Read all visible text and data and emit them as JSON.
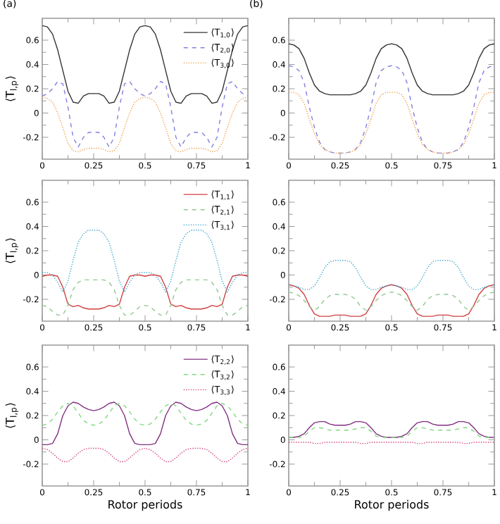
{
  "chart_data": [
    {
      "type": "line",
      "title": "(a)",
      "ylabel": "⟨T$_{l,p}$⟩",
      "legend": "top right",
      "xlim": [
        0,
        1
      ],
      "ylim": [
        -0.38,
        0.78
      ],
      "xticks": [
        0,
        0.25,
        0.5,
        0.75,
        1
      ],
      "yticks": [
        -0.2,
        0,
        0.2,
        0.4,
        0.6
      ],
      "x": [
        0,
        0.025,
        0.05,
        0.075,
        0.1,
        0.125,
        0.15,
        0.175,
        0.2,
        0.225,
        0.25,
        0.275,
        0.3,
        0.325,
        0.35,
        0.375,
        0.4,
        0.425,
        0.45,
        0.475,
        0.5,
        0.525,
        0.55,
        0.575,
        0.6,
        0.625,
        0.65,
        0.675,
        0.7,
        0.725,
        0.75,
        0.775,
        0.8,
        0.825,
        0.85,
        0.875,
        0.9,
        0.925,
        0.95,
        0.975,
        1
      ],
      "series": [
        {
          "name": "⟨T$_{1,0}$⟩",
          "color": "#333333",
          "line_style": "solid",
          "values": [
            0.72,
            0.71,
            0.65,
            0.52,
            0.35,
            0.18,
            0.09,
            0.08,
            0.14,
            0.16,
            0.16,
            0.16,
            0.14,
            0.08,
            0.09,
            0.18,
            0.35,
            0.52,
            0.65,
            0.71,
            0.72,
            0.71,
            0.65,
            0.52,
            0.35,
            0.18,
            0.09,
            0.08,
            0.14,
            0.16,
            0.16,
            0.16,
            0.14,
            0.08,
            0.09,
            0.18,
            0.35,
            0.52,
            0.65,
            0.71,
            0.72
          ]
        },
        {
          "name": "⟨T$_{2,0}$⟩",
          "color": "#8080e0",
          "line_style": "dashed",
          "values": [
            0.14,
            0.16,
            0.2,
            0.26,
            0.24,
            0.05,
            -0.2,
            -0.28,
            -0.2,
            -0.16,
            -0.16,
            -0.16,
            -0.2,
            -0.28,
            -0.2,
            0.05,
            0.24,
            0.26,
            0.2,
            0.16,
            0.14,
            0.16,
            0.2,
            0.26,
            0.24,
            0.05,
            -0.2,
            -0.28,
            -0.2,
            -0.16,
            -0.16,
            -0.16,
            -0.2,
            -0.28,
            -0.2,
            0.05,
            0.24,
            0.26,
            0.2,
            0.16,
            0.14
          ]
        },
        {
          "name": "⟨T$_{3,0}$⟩",
          "color": "#f0a050",
          "line_style": "dotted",
          "values": [
            0.13,
            0.12,
            0.09,
            0,
            -0.12,
            -0.25,
            -0.31,
            -0.32,
            -0.3,
            -0.29,
            -0.29,
            -0.29,
            -0.3,
            -0.32,
            -0.31,
            -0.25,
            -0.12,
            0,
            0.09,
            0.12,
            0.13,
            0.12,
            0.09,
            0,
            -0.12,
            -0.25,
            -0.31,
            -0.32,
            -0.3,
            -0.29,
            -0.29,
            -0.29,
            -0.3,
            -0.32,
            -0.31,
            -0.25,
            -0.12,
            0,
            0.09,
            0.12,
            0.13
          ]
        }
      ]
    },
    {
      "type": "line",
      "title": "(b)",
      "xlim": [
        0,
        1
      ],
      "ylim": [
        -0.38,
        0.78
      ],
      "xticks": [
        0,
        0.25,
        0.5,
        0.75,
        1
      ],
      "yticks": [
        -0.2,
        0,
        0.2,
        0.4,
        0.6
      ],
      "x": [
        0,
        0.025,
        0.05,
        0.075,
        0.1,
        0.125,
        0.15,
        0.175,
        0.2,
        0.225,
        0.25,
        0.275,
        0.3,
        0.325,
        0.35,
        0.375,
        0.4,
        0.425,
        0.45,
        0.475,
        0.5,
        0.525,
        0.55,
        0.575,
        0.6,
        0.625,
        0.65,
        0.675,
        0.7,
        0.725,
        0.75,
        0.775,
        0.8,
        0.825,
        0.85,
        0.875,
        0.9,
        0.925,
        0.95,
        0.975,
        1
      ],
      "series": [
        {
          "color": "#333333",
          "line_style": "solid",
          "values": [
            0.57,
            0.56,
            0.53,
            0.45,
            0.33,
            0.23,
            0.18,
            0.16,
            0.15,
            0.15,
            0.15,
            0.15,
            0.15,
            0.16,
            0.18,
            0.23,
            0.33,
            0.45,
            0.53,
            0.56,
            0.57,
            0.56,
            0.53,
            0.45,
            0.33,
            0.23,
            0.18,
            0.16,
            0.15,
            0.15,
            0.15,
            0.15,
            0.15,
            0.16,
            0.18,
            0.23,
            0.33,
            0.45,
            0.53,
            0.56,
            0.57
          ]
        },
        {
          "color": "#8080e0",
          "line_style": "dashed",
          "values": [
            0.39,
            0.38,
            0.35,
            0.25,
            0.05,
            -0.12,
            -0.24,
            -0.3,
            -0.32,
            -0.33,
            -0.33,
            -0.33,
            -0.32,
            -0.3,
            -0.24,
            -0.12,
            0.05,
            0.25,
            0.35,
            0.38,
            0.39,
            0.38,
            0.35,
            0.25,
            0.05,
            -0.12,
            -0.24,
            -0.3,
            -0.32,
            -0.33,
            -0.33,
            -0.33,
            -0.32,
            -0.3,
            -0.24,
            -0.12,
            0.05,
            0.25,
            0.35,
            0.38,
            0.39
          ]
        },
        {
          "color": "#f0a050",
          "line_style": "dotted",
          "values": [
            0.17,
            0.17,
            0.15,
            0.08,
            -0.05,
            -0.17,
            -0.26,
            -0.3,
            -0.32,
            -0.33,
            -0.33,
            -0.33,
            -0.32,
            -0.3,
            -0.26,
            -0.17,
            -0.05,
            0.08,
            0.15,
            0.17,
            0.17,
            0.17,
            0.15,
            0.08,
            -0.05,
            -0.17,
            -0.26,
            -0.3,
            -0.32,
            -0.33,
            -0.33,
            -0.33,
            -0.32,
            -0.3,
            -0.26,
            -0.17,
            -0.05,
            0.08,
            0.15,
            0.17,
            0.17
          ]
        }
      ]
    },
    {
      "type": "line",
      "ylabel": "⟨T$_{l,p}$⟩",
      "legend": "top right",
      "xlim": [
        0,
        1
      ],
      "ylim": [
        -0.38,
        0.78
      ],
      "xticks": [
        0,
        0.25,
        0.5,
        0.75,
        1
      ],
      "yticks": [
        -0.2,
        0,
        0.2,
        0.4,
        0.6
      ],
      "x": [
        0,
        0.025,
        0.05,
        0.075,
        0.1,
        0.125,
        0.15,
        0.175,
        0.2,
        0.225,
        0.25,
        0.275,
        0.3,
        0.325,
        0.35,
        0.375,
        0.4,
        0.425,
        0.45,
        0.475,
        0.5,
        0.525,
        0.55,
        0.575,
        0.6,
        0.625,
        0.65,
        0.675,
        0.7,
        0.725,
        0.75,
        0.775,
        0.8,
        0.825,
        0.85,
        0.875,
        0.9,
        0.925,
        0.95,
        0.975,
        1
      ],
      "series": [
        {
          "name": "⟨T$_{1,1}$⟩",
          "color": "#d04040",
          "line_style": "solid",
          "values": [
            -0.01,
            0,
            0,
            -0.01,
            -0.1,
            -0.24,
            -0.26,
            -0.25,
            -0.27,
            -0.28,
            -0.28,
            -0.28,
            -0.27,
            -0.25,
            -0.26,
            -0.24,
            -0.1,
            -0.01,
            0,
            0,
            -0.01,
            0,
            0,
            -0.01,
            -0.1,
            -0.24,
            -0.26,
            -0.25,
            -0.27,
            -0.28,
            -0.28,
            -0.28,
            -0.27,
            -0.25,
            -0.26,
            -0.24,
            -0.1,
            -0.01,
            0,
            0,
            -0.01
          ]
        },
        {
          "name": "⟨T$_{2,1}$⟩",
          "color": "#90c890",
          "line_style": "dashed",
          "values": [
            -0.25,
            -0.26,
            -0.3,
            -0.33,
            -0.33,
            -0.25,
            -0.12,
            -0.06,
            -0.04,
            -0.04,
            -0.04,
            -0.04,
            -0.04,
            -0.06,
            -0.12,
            -0.25,
            -0.33,
            -0.33,
            -0.3,
            -0.26,
            -0.25,
            -0.26,
            -0.3,
            -0.33,
            -0.33,
            -0.25,
            -0.12,
            -0.06,
            -0.04,
            -0.04,
            -0.04,
            -0.04,
            -0.04,
            -0.06,
            -0.12,
            -0.25,
            -0.33,
            -0.33,
            -0.3,
            -0.26,
            -0.25
          ]
        },
        {
          "name": "⟨T$_{3,1}$⟩",
          "color": "#40a8d0",
          "line_style": "dotted",
          "values": [
            0.02,
            0.02,
            0,
            -0.06,
            -0.14,
            -0.05,
            0.12,
            0.27,
            0.34,
            0.37,
            0.37,
            0.37,
            0.34,
            0.27,
            0.12,
            -0.05,
            -0.14,
            -0.06,
            0,
            0.02,
            0.02,
            0.02,
            0,
            -0.06,
            -0.14,
            -0.05,
            0.12,
            0.27,
            0.34,
            0.37,
            0.37,
            0.37,
            0.34,
            0.27,
            0.12,
            -0.05,
            -0.14,
            -0.06,
            0,
            0.02,
            0.02
          ]
        }
      ]
    },
    {
      "type": "line",
      "xlim": [
        0,
        1
      ],
      "ylim": [
        -0.38,
        0.78
      ],
      "xticks": [
        0,
        0.25,
        0.5,
        0.75,
        1
      ],
      "yticks": [
        -0.2,
        0,
        0.2,
        0.4,
        0.6
      ],
      "x": [
        0,
        0.025,
        0.05,
        0.075,
        0.1,
        0.125,
        0.15,
        0.175,
        0.2,
        0.225,
        0.25,
        0.275,
        0.3,
        0.325,
        0.35,
        0.375,
        0.4,
        0.425,
        0.45,
        0.475,
        0.5,
        0.525,
        0.55,
        0.575,
        0.6,
        0.625,
        0.65,
        0.675,
        0.7,
        0.725,
        0.75,
        0.775,
        0.8,
        0.825,
        0.85,
        0.875,
        0.9,
        0.925,
        0.95,
        0.975,
        1
      ],
      "series": [
        {
          "color": "#d04040",
          "line_style": "solid",
          "values": [
            -0.08,
            -0.09,
            -0.11,
            -0.16,
            -0.25,
            -0.32,
            -0.34,
            -0.34,
            -0.34,
            -0.33,
            -0.33,
            -0.33,
            -0.34,
            -0.34,
            -0.34,
            -0.32,
            -0.25,
            -0.16,
            -0.11,
            -0.09,
            -0.08,
            -0.09,
            -0.11,
            -0.16,
            -0.25,
            -0.32,
            -0.34,
            -0.34,
            -0.34,
            -0.33,
            -0.33,
            -0.33,
            -0.34,
            -0.34,
            -0.34,
            -0.32,
            -0.25,
            -0.16,
            -0.11,
            -0.09,
            -0.08
          ]
        },
        {
          "color": "#90c890",
          "line_style": "dashed",
          "values": [
            -0.14,
            -0.15,
            -0.17,
            -0.21,
            -0.26,
            -0.29,
            -0.26,
            -0.2,
            -0.17,
            -0.16,
            -0.16,
            -0.16,
            -0.17,
            -0.2,
            -0.26,
            -0.29,
            -0.26,
            -0.21,
            -0.17,
            -0.15,
            -0.14,
            -0.15,
            -0.17,
            -0.21,
            -0.26,
            -0.29,
            -0.26,
            -0.2,
            -0.17,
            -0.16,
            -0.16,
            -0.16,
            -0.17,
            -0.2,
            -0.26,
            -0.29,
            -0.26,
            -0.21,
            -0.17,
            -0.15,
            -0.14
          ]
        },
        {
          "color": "#40a8d0",
          "line_style": "dotted",
          "values": [
            -0.08,
            -0.09,
            -0.1,
            -0.12,
            -0.12,
            -0.09,
            -0.02,
            0.06,
            0.11,
            0.12,
            0.12,
            0.12,
            0.11,
            0.06,
            -0.02,
            -0.09,
            -0.12,
            -0.12,
            -0.1,
            -0.09,
            -0.08,
            -0.09,
            -0.1,
            -0.12,
            -0.12,
            -0.09,
            -0.02,
            0.06,
            0.11,
            0.12,
            0.12,
            0.12,
            0.11,
            0.06,
            -0.02,
            -0.09,
            -0.12,
            -0.12,
            -0.1,
            -0.09,
            -0.08
          ]
        }
      ]
    },
    {
      "type": "line",
      "xlabel": "Rotor periods",
      "ylabel": "⟨T$_{l,p}$⟩",
      "legend": "top right",
      "xlim": [
        0,
        1
      ],
      "ylim": [
        -0.38,
        0.78
      ],
      "xticks": [
        0,
        0.25,
        0.5,
        0.75,
        1
      ],
      "yticks": [
        -0.2,
        0,
        0.2,
        0.4,
        0.6
      ],
      "x": [
        0,
        0.025,
        0.05,
        0.075,
        0.1,
        0.125,
        0.15,
        0.175,
        0.2,
        0.225,
        0.25,
        0.275,
        0.3,
        0.325,
        0.35,
        0.375,
        0.4,
        0.425,
        0.45,
        0.475,
        0.5,
        0.525,
        0.55,
        0.575,
        0.6,
        0.625,
        0.65,
        0.675,
        0.7,
        0.725,
        0.75,
        0.775,
        0.8,
        0.825,
        0.85,
        0.875,
        0.9,
        0.925,
        0.95,
        0.975,
        1
      ],
      "series": [
        {
          "name": "⟨T$_{2,2}$⟩",
          "color": "#803080",
          "line_style": "solid",
          "values": [
            -0.04,
            -0.04,
            -0.03,
            0.05,
            0.2,
            0.28,
            0.31,
            0.3,
            0.27,
            0.25,
            0.24,
            0.25,
            0.27,
            0.3,
            0.31,
            0.28,
            0.2,
            0.05,
            -0.03,
            -0.04,
            -0.04,
            -0.04,
            -0.03,
            0.05,
            0.2,
            0.28,
            0.31,
            0.3,
            0.27,
            0.25,
            0.24,
            0.25,
            0.27,
            0.3,
            0.31,
            0.28,
            0.2,
            0.05,
            -0.03,
            -0.04,
            -0.04
          ]
        },
        {
          "name": "⟨T$_{3,2}$⟩",
          "color": "#80d880",
          "line_style": "dashed",
          "values": [
            0.12,
            0.13,
            0.17,
            0.23,
            0.28,
            0.3,
            0.28,
            0.22,
            0.16,
            0.13,
            0.12,
            0.13,
            0.16,
            0.22,
            0.28,
            0.3,
            0.28,
            0.23,
            0.17,
            0.13,
            0.12,
            0.13,
            0.17,
            0.23,
            0.28,
            0.3,
            0.28,
            0.22,
            0.16,
            0.13,
            0.12,
            0.13,
            0.16,
            0.22,
            0.28,
            0.3,
            0.28,
            0.23,
            0.17,
            0.13,
            0.12
          ]
        },
        {
          "name": "⟨T$_{3,3}$⟩",
          "color": "#d04080",
          "line_style": "dotted",
          "values": [
            -0.07,
            -0.08,
            -0.11,
            -0.15,
            -0.18,
            -0.18,
            -0.15,
            -0.11,
            -0.08,
            -0.07,
            -0.07,
            -0.07,
            -0.08,
            -0.11,
            -0.15,
            -0.18,
            -0.18,
            -0.15,
            -0.11,
            -0.08,
            -0.07,
            -0.08,
            -0.11,
            -0.15,
            -0.18,
            -0.18,
            -0.15,
            -0.11,
            -0.08,
            -0.07,
            -0.07,
            -0.07,
            -0.08,
            -0.11,
            -0.15,
            -0.18,
            -0.18,
            -0.15,
            -0.11,
            -0.08,
            -0.07
          ]
        }
      ]
    },
    {
      "type": "line",
      "xlabel": "Rotor periods",
      "xlim": [
        0,
        1
      ],
      "ylim": [
        -0.38,
        0.78
      ],
      "xticks": [
        0,
        0.25,
        0.5,
        0.75,
        1
      ],
      "yticks": [
        -0.2,
        0,
        0.2,
        0.4,
        0.6
      ],
      "x": [
        0,
        0.025,
        0.05,
        0.075,
        0.1,
        0.125,
        0.15,
        0.175,
        0.2,
        0.225,
        0.25,
        0.275,
        0.3,
        0.325,
        0.35,
        0.375,
        0.4,
        0.425,
        0.45,
        0.475,
        0.5,
        0.525,
        0.55,
        0.575,
        0.6,
        0.625,
        0.65,
        0.675,
        0.7,
        0.725,
        0.75,
        0.775,
        0.8,
        0.825,
        0.85,
        0.875,
        0.9,
        0.925,
        0.95,
        0.975,
        1
      ],
      "series": [
        {
          "color": "#803080",
          "line_style": "solid",
          "values": [
            0.02,
            0.02,
            0.03,
            0.05,
            0.1,
            0.14,
            0.15,
            0.15,
            0.13,
            0.12,
            0.12,
            0.12,
            0.13,
            0.15,
            0.15,
            0.14,
            0.1,
            0.05,
            0.03,
            0.02,
            0.02,
            0.02,
            0.03,
            0.05,
            0.1,
            0.14,
            0.15,
            0.15,
            0.13,
            0.12,
            0.12,
            0.12,
            0.13,
            0.15,
            0.15,
            0.14,
            0.1,
            0.05,
            0.03,
            0.02,
            0.02
          ]
        },
        {
          "color": "#80d880",
          "line_style": "dashed",
          "values": [
            0.02,
            0.02,
            0.02,
            0.03,
            0.07,
            0.1,
            0.1,
            0.09,
            0.08,
            0.08,
            0.08,
            0.08,
            0.08,
            0.09,
            0.1,
            0.1,
            0.07,
            0.03,
            0.02,
            0.02,
            0.02,
            0.02,
            0.02,
            0.03,
            0.07,
            0.1,
            0.1,
            0.09,
            0.08,
            0.08,
            0.08,
            0.08,
            0.08,
            0.09,
            0.1,
            0.1,
            0.07,
            0.03,
            0.02,
            0.02,
            0.02
          ]
        },
        {
          "color": "#d04080",
          "line_style": "dotted",
          "values": [
            -0.02,
            -0.02,
            -0.02,
            -0.02,
            -0.02,
            -0.03,
            -0.03,
            -0.02,
            -0.02,
            -0.02,
            -0.02,
            -0.02,
            -0.02,
            -0.02,
            -0.03,
            -0.03,
            -0.02,
            -0.02,
            -0.02,
            -0.02,
            -0.02,
            -0.02,
            -0.02,
            -0.02,
            -0.02,
            -0.03,
            -0.03,
            -0.02,
            -0.02,
            -0.02,
            -0.02,
            -0.02,
            -0.02,
            -0.02,
            -0.03,
            -0.03,
            -0.02,
            -0.02,
            -0.02,
            -0.02,
            -0.02
          ]
        }
      ]
    }
  ]
}
